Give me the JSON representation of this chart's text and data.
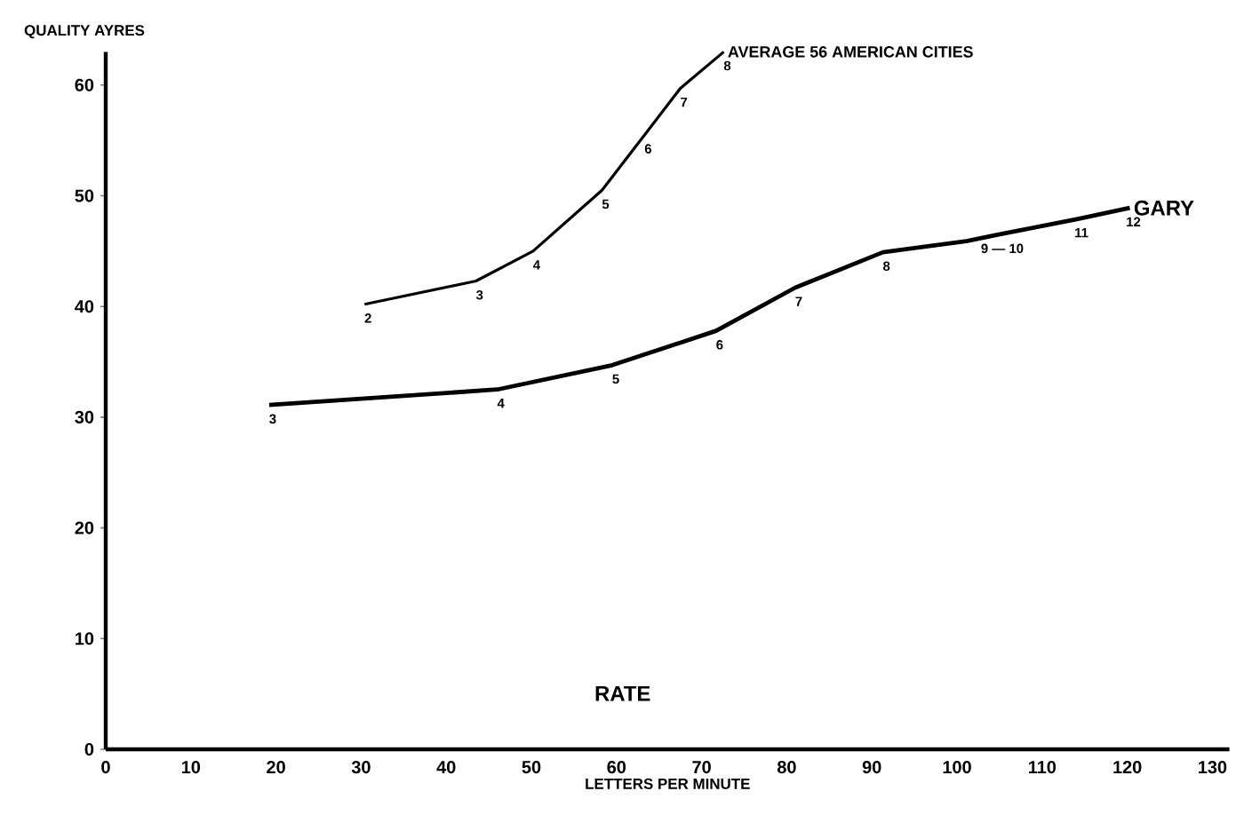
{
  "chart_data": {
    "type": "line",
    "xlabel": "LETTERS PER MINUTE",
    "ylabel": "QUALITY AYRES",
    "xlim": [
      0,
      132
    ],
    "ylim": [
      0,
      63
    ],
    "xticks": [
      0,
      10,
      20,
      30,
      40,
      50,
      60,
      70,
      80,
      90,
      100,
      110,
      120,
      130
    ],
    "yticks": [
      0,
      10,
      20,
      30,
      40,
      50,
      60
    ],
    "series": [
      {
        "name": "AVERAGE 56 AMERICAN CITIES",
        "color": "#000000",
        "x": [
          30.4,
          43.5,
          50.2,
          58.3,
          63.3,
          67.5,
          72.6
        ],
        "values": [
          40.2,
          42.3,
          45.0,
          50.5,
          55.5,
          59.7,
          63.0
        ]
      },
      {
        "name": "GARY",
        "color": "#000000",
        "x": [
          19.2,
          46,
          59.5,
          71.7,
          81,
          91.3,
          101.1,
          104.9,
          114.2,
          120.3
        ],
        "values": [
          31.1,
          32.5,
          34.7,
          37.8,
          41.7,
          44.9,
          45.9,
          46.5,
          47.9,
          48.9
        ]
      }
    ],
    "annotations": [
      {
        "text": "2",
        "x": 30.4,
        "y": 40.2
      },
      {
        "text": "3",
        "x": 43.5,
        "y": 42.3
      },
      {
        "text": "4",
        "x": 50.2,
        "y": 45.0
      },
      {
        "text": "5",
        "x": 58.3,
        "y": 50.5
      },
      {
        "text": "6",
        "x": 63.3,
        "y": 55.5
      },
      {
        "text": "7",
        "x": 67.5,
        "y": 59.7
      },
      {
        "text": "8",
        "x": 72.6,
        "y": 63.0
      },
      {
        "text": "3",
        "x": 19.2,
        "y": 31.1
      },
      {
        "text": "4",
        "x": 46,
        "y": 32.5
      },
      {
        "text": "5",
        "x": 59.5,
        "y": 34.7
      },
      {
        "text": "6",
        "x": 71.7,
        "y": 37.8
      },
      {
        "text": "7",
        "x": 81,
        "y": 41.7
      },
      {
        "text": "8",
        "x": 91.3,
        "y": 44.9
      },
      {
        "text": "9 — 10",
        "x": 104.9,
        "y": 46.5
      },
      {
        "text": "11",
        "x": 114.2,
        "y": 47.9
      },
      {
        "text": "12",
        "x": 120.3,
        "y": 48.9
      },
      "RATE"
    ]
  }
}
